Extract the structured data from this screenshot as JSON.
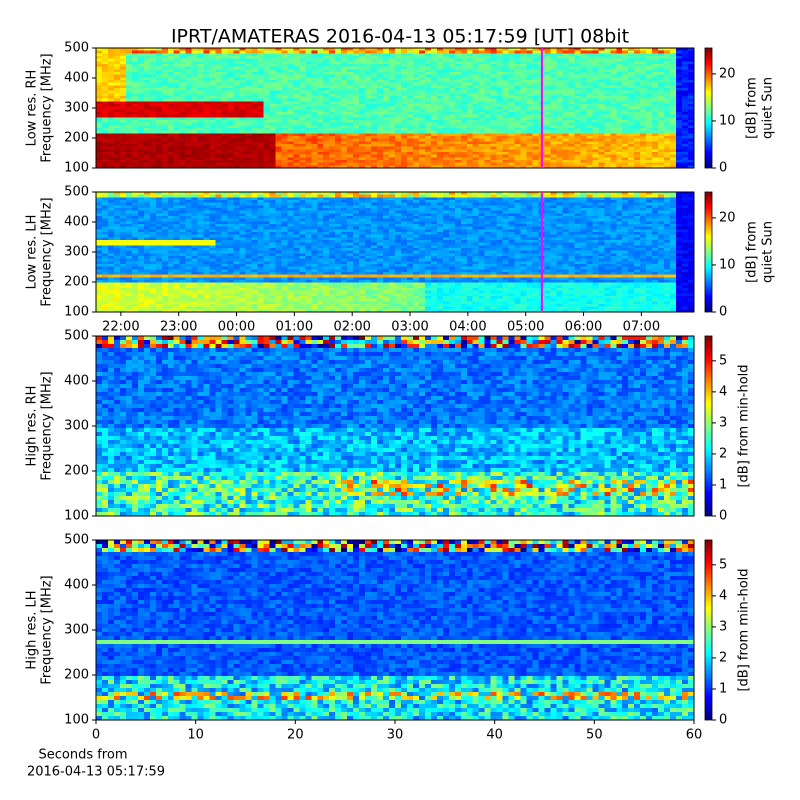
{
  "title": "IPRT/AMATERAS 2016-04-13 05:17:59 [UT]   08bit",
  "chart_data": [
    {
      "type": "heatmap",
      "kind": "low-rh",
      "ylabel": [
        "Low res. RH",
        "Frequency [MHz]"
      ],
      "ylim": [
        100,
        500
      ],
      "yticks": [
        100,
        200,
        300,
        400,
        500
      ],
      "xlim": [
        21.57,
        31.91
      ],
      "colormap": "jet",
      "marker": {
        "x": 29.28,
        "color": "#ff00ff"
      },
      "colorbar": {
        "label": [
          "[dB] from",
          "quiet Sun"
        ],
        "lim": [
          0,
          25.5
        ],
        "ticks": [
          0,
          10,
          20
        ]
      }
    },
    {
      "type": "heatmap",
      "kind": "low-lh",
      "ylabel": [
        "Low res. LH",
        "Frequency [MHz]"
      ],
      "ylim": [
        100,
        500
      ],
      "yticks": [
        100,
        200,
        300,
        400,
        500
      ],
      "xlim": [
        21.57,
        31.91
      ],
      "xticks": [
        {
          "value": 22,
          "label": "22:00"
        },
        {
          "value": 23,
          "label": "23:00"
        },
        {
          "value": 24,
          "label": "00:00"
        },
        {
          "value": 25,
          "label": "01:00"
        },
        {
          "value": 26,
          "label": "02:00"
        },
        {
          "value": 27,
          "label": "03:00"
        },
        {
          "value": 28,
          "label": "04:00"
        },
        {
          "value": 29,
          "label": "05:00"
        },
        {
          "value": 30,
          "label": "06:00"
        },
        {
          "value": 31,
          "label": "07:00"
        }
      ],
      "colormap": "jet",
      "marker": {
        "x": 29.28,
        "color": "#ff00ff"
      },
      "colorbar": {
        "label": [
          "[dB] from",
          "quiet Sun"
        ],
        "lim": [
          0,
          25.5
        ],
        "ticks": [
          0,
          10,
          20
        ]
      }
    },
    {
      "type": "heatmap",
      "kind": "high-rh",
      "ylabel": [
        "High res. RH",
        "Frequency [MHz]"
      ],
      "ylim": [
        100,
        500
      ],
      "yticks": [
        100,
        200,
        300,
        400,
        500
      ],
      "xlim": [
        0,
        60
      ],
      "colormap": "jet",
      "colorbar": {
        "label": [
          "[dB] from min-hold"
        ],
        "lim": [
          0,
          5.8
        ],
        "ticks": [
          0,
          1,
          2,
          3,
          4,
          5
        ]
      }
    },
    {
      "type": "heatmap",
      "kind": "high-lh",
      "ylabel": [
        "High res. LH",
        "Frequency [MHz]"
      ],
      "ylim": [
        100,
        500
      ],
      "yticks": [
        100,
        200,
        300,
        400,
        500
      ],
      "xlim": [
        0,
        60
      ],
      "xticks": [
        0,
        10,
        20,
        30,
        40,
        50,
        60
      ],
      "xlabel": [
        "Seconds from",
        "2016-04-13 05:17:59"
      ],
      "colormap": "jet",
      "colorbar": {
        "label": [
          "[dB] from min-hold"
        ],
        "lim": [
          0,
          5.8
        ],
        "ticks": [
          0,
          1,
          2,
          3,
          4,
          5
        ]
      }
    }
  ]
}
